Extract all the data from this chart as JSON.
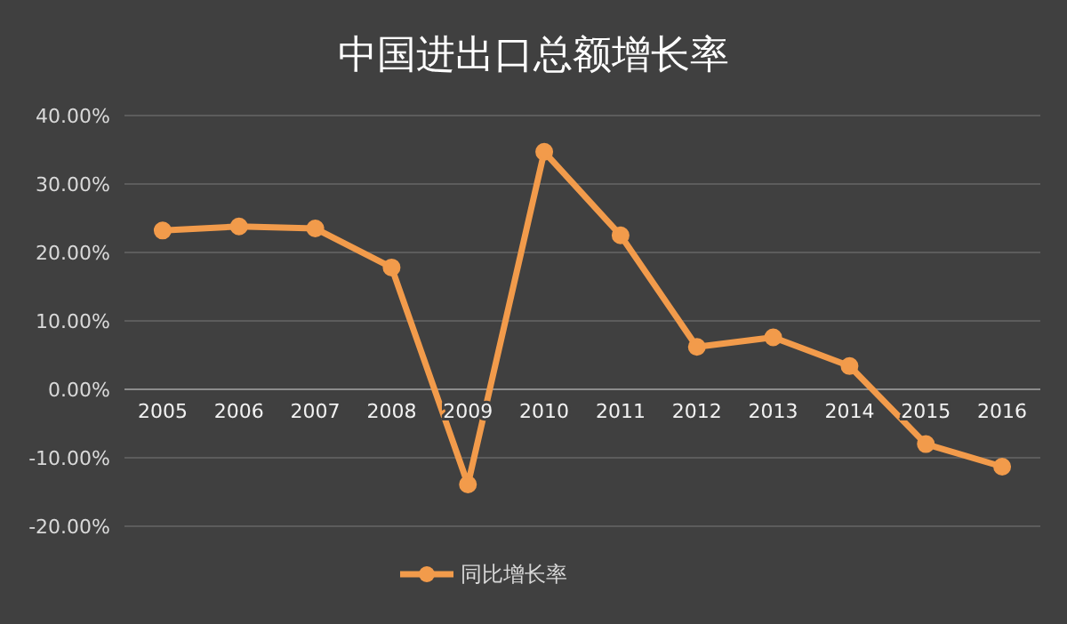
{
  "chart_data": {
    "type": "line",
    "title": "中国进出口总额增长率",
    "categories": [
      "2005",
      "2006",
      "2007",
      "2008",
      "2009",
      "2010",
      "2011",
      "2012",
      "2013",
      "2014",
      "2015",
      "2016"
    ],
    "series": [
      {
        "name": "同比增长率",
        "color": "#f29b4b",
        "values": [
          23.2,
          23.8,
          23.5,
          17.8,
          -13.9,
          34.7,
          22.5,
          6.2,
          7.6,
          3.4,
          -8.0,
          -11.3
        ]
      }
    ],
    "ylim": [
      -20,
      40
    ],
    "yticks": [
      {
        "value": -20,
        "label": "-20.00%"
      },
      {
        "value": -10,
        "label": "-10.00%"
      },
      {
        "value": 0,
        "label": "0.00%"
      },
      {
        "value": 10,
        "label": "10.00%"
      },
      {
        "value": 20,
        "label": "20.00%"
      },
      {
        "value": 30,
        "label": "30.00%"
      },
      {
        "value": 40,
        "label": "40.00%"
      }
    ],
    "grid": "y",
    "legend": "bottom",
    "marker": "circle",
    "line_style": "solid"
  }
}
